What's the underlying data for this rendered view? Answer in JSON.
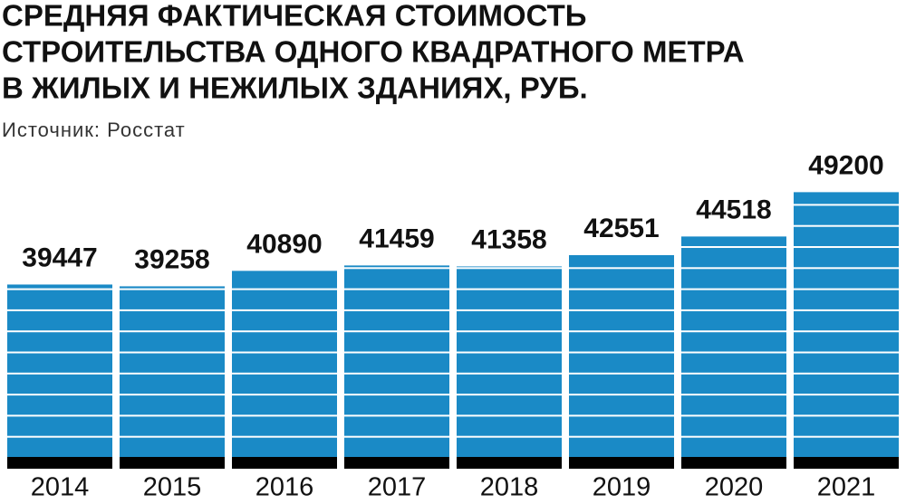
{
  "chart_data": {
    "type": "bar",
    "title": [
      "СРЕДНЯЯ ФАКТИЧЕСКАЯ СТОИМОСТЬ",
      "СТРОИТЕЛЬСТВА ОДНОГО КВАДРАТНОГО МЕТРА",
      "В  ЖИЛЫХ И НЕЖИЛЫХ ЗДАНИЯХ, РУБ."
    ],
    "subtitle": "Источник: Росстат",
    "categories": [
      "2014",
      "2015",
      "2016",
      "2017",
      "2018",
      "2019",
      "2020",
      "2021"
    ],
    "values": [
      39447,
      39258,
      40890,
      41459,
      41358,
      42551,
      44518,
      49200
    ],
    "color": "#1a8ac6",
    "ylim": [
      20000,
      50000
    ]
  }
}
